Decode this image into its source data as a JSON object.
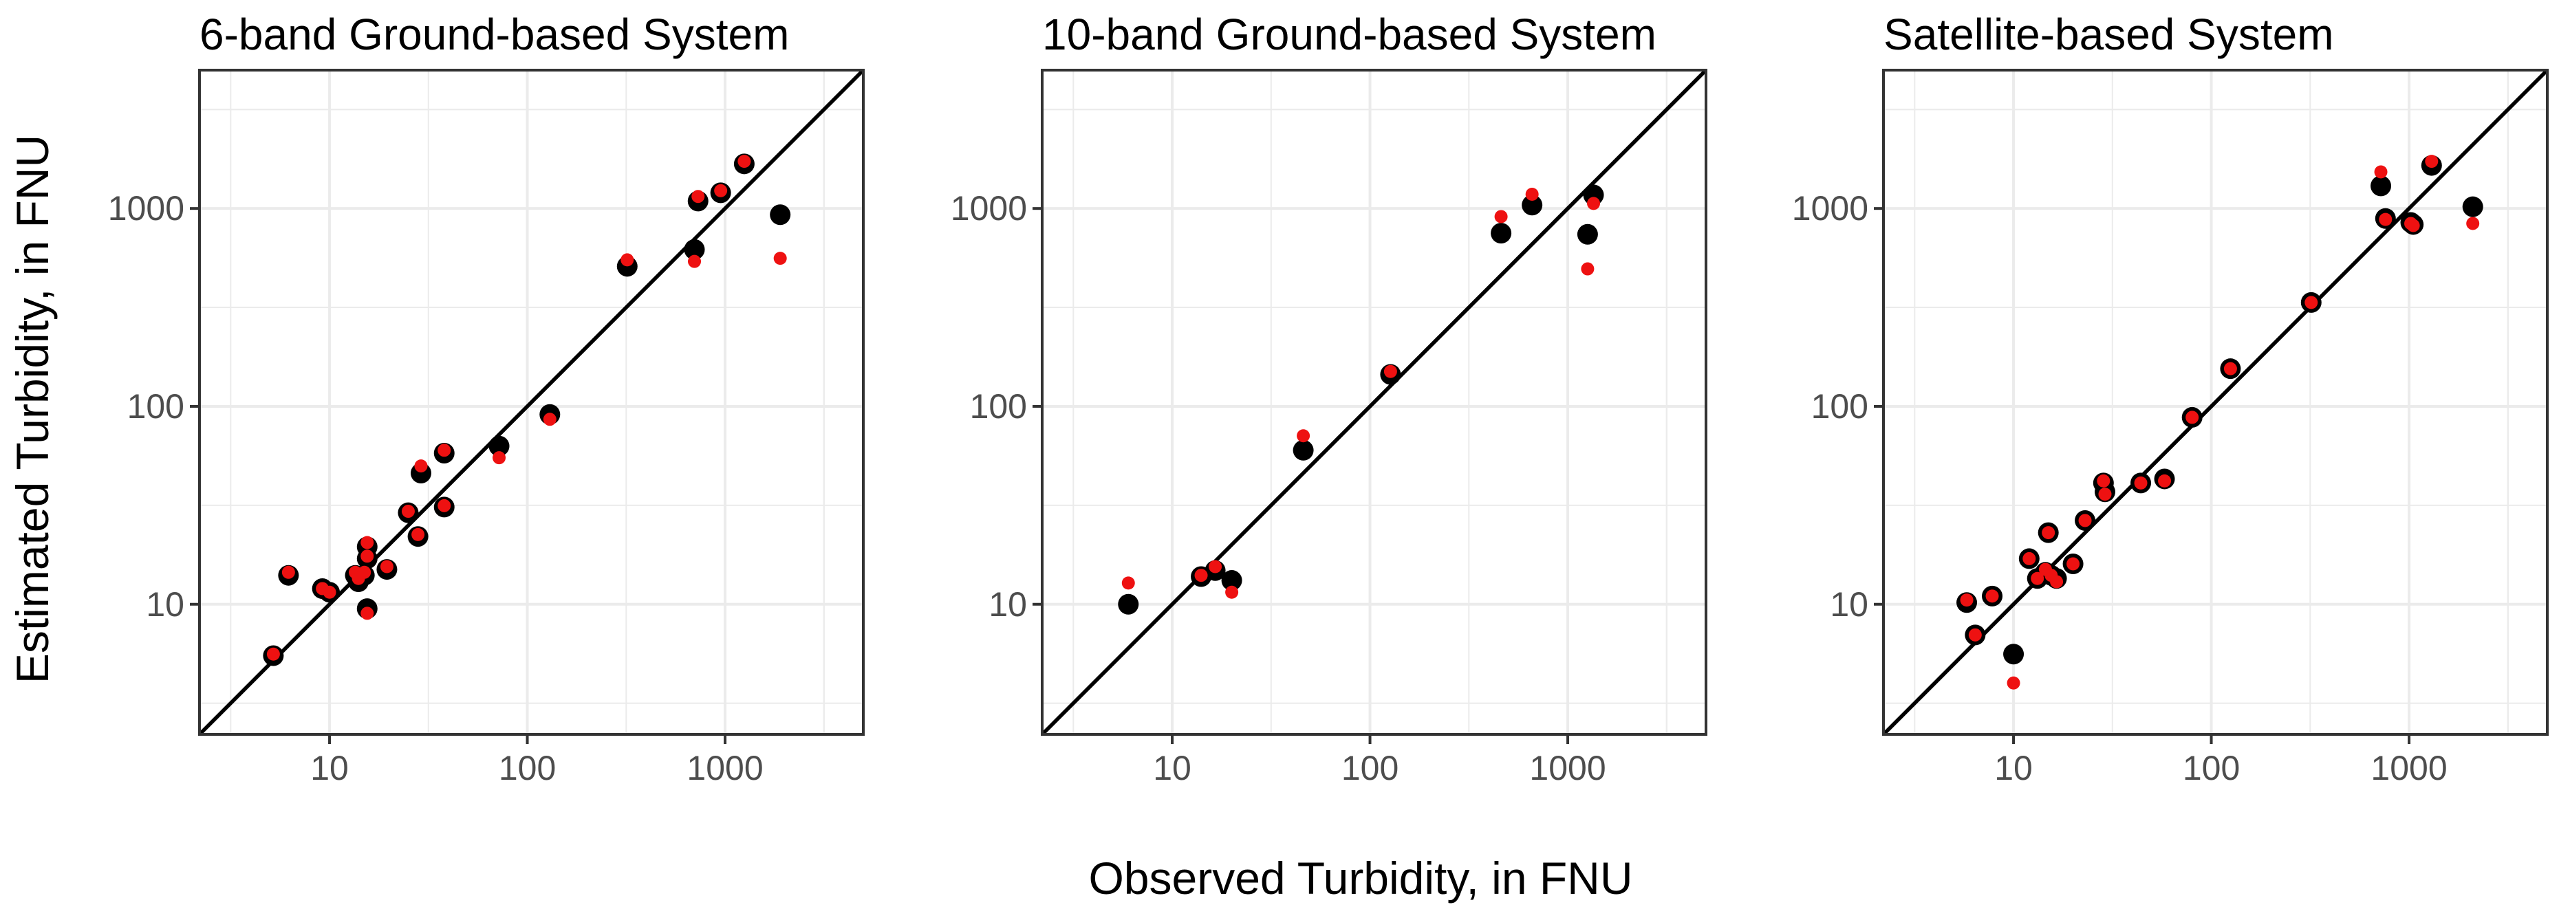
{
  "figure": {
    "xlabel": "Observed Turbidity, in FNU",
    "ylabel": "Estimated Turbidity, in FNU"
  },
  "colors": {
    "black_points": "#000000",
    "red_points": "#ee1111",
    "grid": "#ebebeb",
    "panel_border": "#333333",
    "identity_line": "#000000"
  },
  "chart_data": [
    {
      "type": "scatter",
      "title": "6-band Ground-based System",
      "xscale": "log",
      "yscale": "log",
      "xlim": [
        2.2,
        5000
      ],
      "ylim": [
        2.2,
        5000
      ],
      "xticks": [
        10,
        100,
        1000
      ],
      "yticks": [
        10,
        100,
        1000
      ],
      "tick_labels": [
        "10",
        "100",
        "1000"
      ],
      "grid": true,
      "reference_line": "1:1",
      "series": [
        {
          "marker": "large black circle",
          "points": [
            [
              5.2,
              5.5
            ],
            [
              6.2,
              14
            ],
            [
              9.2,
              12
            ],
            [
              10,
              11.5
            ],
            [
              13.5,
              14
            ],
            [
              14,
              13
            ],
            [
              15,
              14
            ],
            [
              15.5,
              17
            ],
            [
              15.5,
              19.5
            ],
            [
              15.5,
              9.5
            ],
            [
              19.5,
              15
            ],
            [
              25,
              29
            ],
            [
              28,
              22
            ],
            [
              29,
              46
            ],
            [
              38,
              31
            ],
            [
              38,
              58
            ],
            [
              72,
              63
            ],
            [
              130,
              91
            ],
            [
              320,
              510
            ],
            [
              700,
              620
            ],
            [
              730,
              1090
            ],
            [
              950,
              1200
            ],
            [
              1250,
              1680
            ],
            [
              1900,
              930
            ]
          ]
        },
        {
          "marker": "small red circle",
          "points": [
            [
              5.2,
              5.6
            ],
            [
              6.2,
              14.5
            ],
            [
              9.2,
              12
            ],
            [
              10,
              11.5
            ],
            [
              13.5,
              14.5
            ],
            [
              14,
              13.5
            ],
            [
              15,
              14.5
            ],
            [
              15.5,
              17.5
            ],
            [
              15.5,
              20.5
            ],
            [
              15.5,
              9
            ],
            [
              19.5,
              15.5
            ],
            [
              25,
              29.5
            ],
            [
              28,
              22.5
            ],
            [
              29,
              50
            ],
            [
              38,
              31.5
            ],
            [
              38,
              60
            ],
            [
              72,
              55
            ],
            [
              130,
              86
            ],
            [
              320,
              550
            ],
            [
              700,
              540
            ],
            [
              730,
              1150
            ],
            [
              950,
              1230
            ],
            [
              1250,
              1730
            ],
            [
              1900,
              560
            ]
          ]
        }
      ]
    },
    {
      "type": "scatter",
      "title": "10-band Ground-based System",
      "xscale": "log",
      "yscale": "log",
      "xlim": [
        2.2,
        5000
      ],
      "ylim": [
        2.2,
        5000
      ],
      "xticks": [
        10,
        100,
        1000
      ],
      "yticks": [
        10,
        100,
        1000
      ],
      "tick_labels": [
        "10",
        "100",
        "1000"
      ],
      "grid": true,
      "reference_line": "1:1",
      "series": [
        {
          "marker": "large black circle",
          "points": [
            [
              6,
              10
            ],
            [
              14,
              13.8
            ],
            [
              16.5,
              14.8
            ],
            [
              20,
              13.2
            ],
            [
              46,
              60
            ],
            [
              127,
              145
            ],
            [
              460,
              750
            ],
            [
              660,
              1040
            ],
            [
              1260,
              740
            ],
            [
              1350,
              1170
            ]
          ]
        },
        {
          "marker": "small red circle",
          "points": [
            [
              6,
              12.8
            ],
            [
              14,
              14
            ],
            [
              16.5,
              15.5
            ],
            [
              20,
              11.5
            ],
            [
              46,
              71
            ],
            [
              127,
              150
            ],
            [
              460,
              910
            ],
            [
              660,
              1180
            ],
            [
              1260,
              495
            ],
            [
              1350,
              1060
            ]
          ]
        }
      ]
    },
    {
      "type": "scatter",
      "title": "Satellite-based System",
      "xscale": "log",
      "yscale": "log",
      "xlim": [
        2.2,
        5000
      ],
      "ylim": [
        2.2,
        5000
      ],
      "xticks": [
        10,
        100,
        1000
      ],
      "yticks": [
        10,
        100,
        1000
      ],
      "tick_labels": [
        "10",
        "100",
        "1000"
      ],
      "grid": true,
      "reference_line": "1:1",
      "series": [
        {
          "marker": "large black circle",
          "points": [
            [
              5.8,
              10.2
            ],
            [
              6.4,
              7
            ],
            [
              7.8,
              11
            ],
            [
              10,
              5.6
            ],
            [
              12,
              17
            ],
            [
              13.2,
              13.5
            ],
            [
              14.5,
              14.5
            ],
            [
              15,
              23
            ],
            [
              15.5,
              14
            ],
            [
              16.5,
              13.5
            ],
            [
              20,
              16
            ],
            [
              23,
              26.5
            ],
            [
              28.5,
              41
            ],
            [
              29,
              37
            ],
            [
              44,
              41
            ],
            [
              58,
              43
            ],
            [
              80,
              88
            ],
            [
              125,
              155
            ],
            [
              320,
              335
            ],
            [
              720,
              1300
            ],
            [
              760,
              890
            ],
            [
              1020,
              850
            ],
            [
              1050,
              830
            ],
            [
              1300,
              1650
            ],
            [
              2100,
              1020
            ]
          ]
        },
        {
          "marker": "small red circle",
          "points": [
            [
              5.8,
              10.5
            ],
            [
              6.4,
              7
            ],
            [
              7.8,
              11
            ],
            [
              10,
              4
            ],
            [
              12,
              17
            ],
            [
              13.2,
              13.5
            ],
            [
              14.5,
              15
            ],
            [
              15,
              23
            ],
            [
              15.5,
              14
            ],
            [
              16.5,
              13
            ],
            [
              20,
              16
            ],
            [
              23,
              26.5
            ],
            [
              28.5,
              42
            ],
            [
              29,
              36
            ],
            [
              44,
              41
            ],
            [
              58,
              42
            ],
            [
              80,
              88
            ],
            [
              125,
              155
            ],
            [
              320,
              335
            ],
            [
              720,
              1530
            ],
            [
              760,
              880
            ],
            [
              1020,
              840
            ],
            [
              1050,
              820
            ],
            [
              1300,
              1730
            ],
            [
              2100,
              840
            ]
          ]
        }
      ]
    }
  ]
}
